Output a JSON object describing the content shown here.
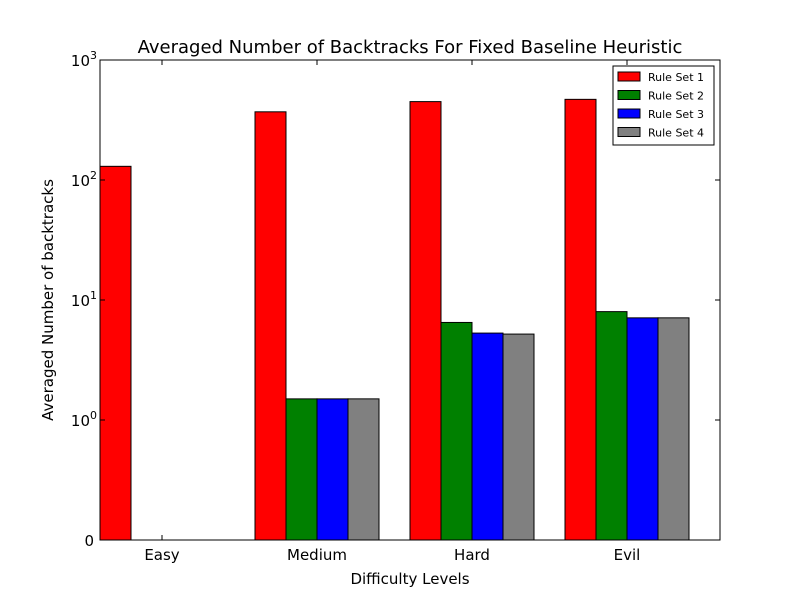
{
  "chart_data": {
    "type": "bar",
    "title": "Averaged Number of Backtracks For Fixed Baseline Heuristic",
    "xlabel": "Difficulty Levels",
    "ylabel": "Averaged Number of backtracks",
    "yscale": "symlog",
    "ylim": [
      0,
      1000
    ],
    "yticks": [
      {
        "value": 0,
        "base": "0",
        "exp": ""
      },
      {
        "value": 1,
        "base": "10",
        "exp": "0"
      },
      {
        "value": 10,
        "base": "10",
        "exp": "1"
      },
      {
        "value": 100,
        "base": "10",
        "exp": "2"
      },
      {
        "value": 1000,
        "base": "10",
        "exp": "3"
      }
    ],
    "categories": [
      "Easy",
      "Medium",
      "Hard",
      "Evil"
    ],
    "series": [
      {
        "name": "Rule Set 1",
        "color": "#ff0000",
        "values": [
          130,
          370,
          450,
          470
        ]
      },
      {
        "name": "Rule Set 2",
        "color": "#008000",
        "values": [
          0,
          1.5,
          6.5,
          8
        ]
      },
      {
        "name": "Rule Set 3",
        "color": "#0000ff",
        "values": [
          0,
          1.5,
          5.3,
          7.1
        ]
      },
      {
        "name": "Rule Set 4",
        "color": "#808080",
        "values": [
          0,
          1.5,
          5.2,
          7.1
        ]
      }
    ],
    "legend": "top-right",
    "grid": false
  }
}
